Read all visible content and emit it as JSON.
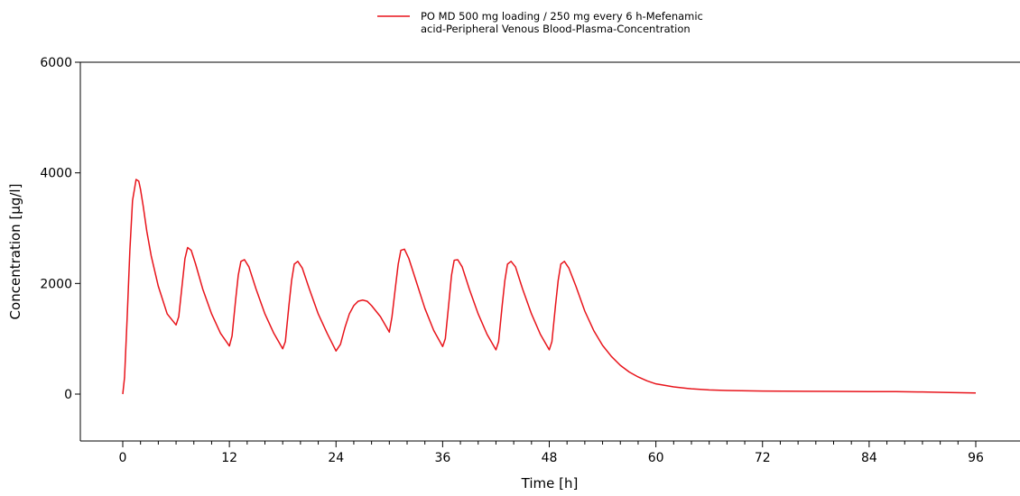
{
  "chart_data": {
    "type": "line",
    "title": "",
    "xlabel": "Time [h]",
    "ylabel": "Concentration [µg/l]",
    "xlim": [
      -6,
      98
    ],
    "ylim": [
      -800,
      6000
    ],
    "x_ticks": [
      0,
      12,
      24,
      36,
      48,
      60,
      72,
      84,
      96
    ],
    "y_ticks": [
      0,
      2000,
      4000,
      6000
    ],
    "x_minor_step": 2,
    "grid": false,
    "legend_position": "top-center",
    "series": [
      {
        "name": "PO MD 500 mg loading / 250 mg every 6 h-Mefenamic acid-Peripheral Venous Blood-Plasma-Concentration",
        "color": "#e8141b",
        "x": [
          0,
          0.2,
          0.5,
          0.8,
          1.1,
          1.5,
          1.8,
          2.0,
          2.3,
          2.7,
          3.2,
          4.0,
          5.0,
          6.0,
          6.3,
          6.7,
          7.0,
          7.3,
          7.7,
          8.2,
          9.0,
          10.0,
          11.0,
          12.0,
          12.3,
          12.7,
          13.0,
          13.3,
          13.7,
          14.2,
          15.0,
          16.0,
          17.0,
          18.0,
          18.3,
          18.7,
          19.0,
          19.3,
          19.7,
          20.2,
          21.0,
          22.0,
          23.0,
          24.0,
          24.5,
          25.0,
          25.5,
          26.0,
          26.5,
          27.0,
          27.5,
          28.0,
          29.0,
          30.0,
          30.3,
          30.7,
          31.0,
          31.3,
          31.7,
          32.2,
          33.0,
          34.0,
          35.0,
          36.0,
          36.3,
          36.7,
          37.0,
          37.3,
          37.7,
          38.2,
          39.0,
          40.0,
          41.0,
          42.0,
          42.3,
          42.7,
          43.0,
          43.3,
          43.7,
          44.2,
          45.0,
          46.0,
          47.0,
          48.0,
          48.3,
          48.7,
          49.0,
          49.3,
          49.7,
          50.2,
          51.0,
          52.0,
          53.0,
          54.0,
          55.0,
          56.0,
          57.0,
          58.0,
          59.0,
          60.0,
          62.0,
          64.0,
          66.0,
          68.0,
          72.0,
          80.0,
          84.0,
          87.0,
          90.0,
          93.0,
          96.0
        ],
        "values": [
          0,
          300,
          1400,
          2600,
          3500,
          3880,
          3850,
          3700,
          3400,
          2950,
          2500,
          1950,
          1450,
          1250,
          1400,
          2000,
          2450,
          2650,
          2600,
          2350,
          1900,
          1450,
          1100,
          870,
          1050,
          1700,
          2150,
          2400,
          2430,
          2300,
          1900,
          1450,
          1100,
          820,
          950,
          1600,
          2050,
          2350,
          2400,
          2280,
          1900,
          1450,
          1100,
          780,
          900,
          1200,
          1450,
          1600,
          1680,
          1700,
          1680,
          1600,
          1400,
          1120,
          1400,
          1950,
          2350,
          2600,
          2620,
          2450,
          2050,
          1550,
          1150,
          860,
          1000,
          1650,
          2150,
          2420,
          2430,
          2300,
          1900,
          1450,
          1080,
          800,
          950,
          1600,
          2050,
          2350,
          2400,
          2300,
          1900,
          1450,
          1080,
          800,
          950,
          1600,
          2050,
          2350,
          2400,
          2280,
          1950,
          1500,
          1150,
          880,
          680,
          520,
          400,
          310,
          240,
          185,
          130,
          95,
          75,
          65,
          55,
          48,
          45,
          44,
          38,
          28,
          20
        ]
      }
    ]
  }
}
